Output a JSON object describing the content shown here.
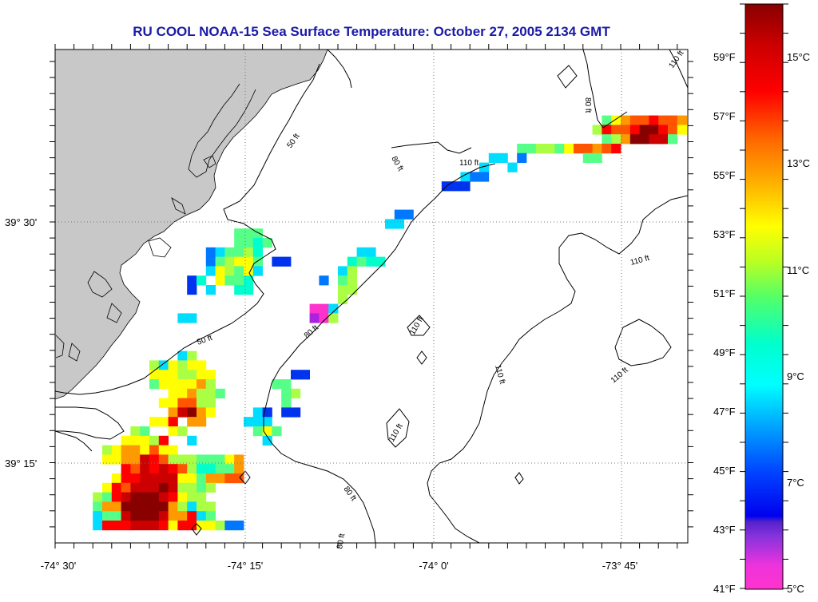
{
  "title": "RU COOL  NOAA-15  Sea Surface Temperature:  October 27, 2005 2134 GMT",
  "axes": {
    "x_ticks": [
      "-74° 30'",
      "-74° 15'",
      "-74° 0'",
      "-73° 45'"
    ],
    "y_ticks": [
      "39° 30'",
      "39° 15'"
    ]
  },
  "contour_labels": [
    "50 ft",
    "50 ft",
    "80 ft",
    "80 ft",
    "80 ft",
    "80 ft",
    "80 ft",
    "110 ft",
    "110 ft",
    "110 ft",
    "110 ft",
    "110 ft",
    "110 ft",
    "110 ft"
  ],
  "colorbar": {
    "fahrenheit": [
      "59°F",
      "57°F",
      "55°F",
      "53°F",
      "51°F",
      "49°F",
      "47°F",
      "45°F",
      "43°F",
      "41°F"
    ],
    "celsius": [
      "15°C",
      "13°C",
      "11°C",
      "9°C",
      "7°C",
      "5°C"
    ]
  },
  "colors": {
    "title": "#1a1aa8",
    "land": "#c8c8c8",
    "scale": [
      "#ff33cc",
      "#aa22dd",
      "#5500cc",
      "#0022ee",
      "#0055ff",
      "#0099ff",
      "#00ddff",
      "#00ffcc",
      "#33ff88",
      "#88ff44",
      "#ccff22",
      "#ffff00",
      "#ffcc00",
      "#ff9900",
      "#ff5500",
      "#ff0000",
      "#cc0000",
      "#880000"
    ]
  },
  "legend_icon": "vertical-color-scale"
}
